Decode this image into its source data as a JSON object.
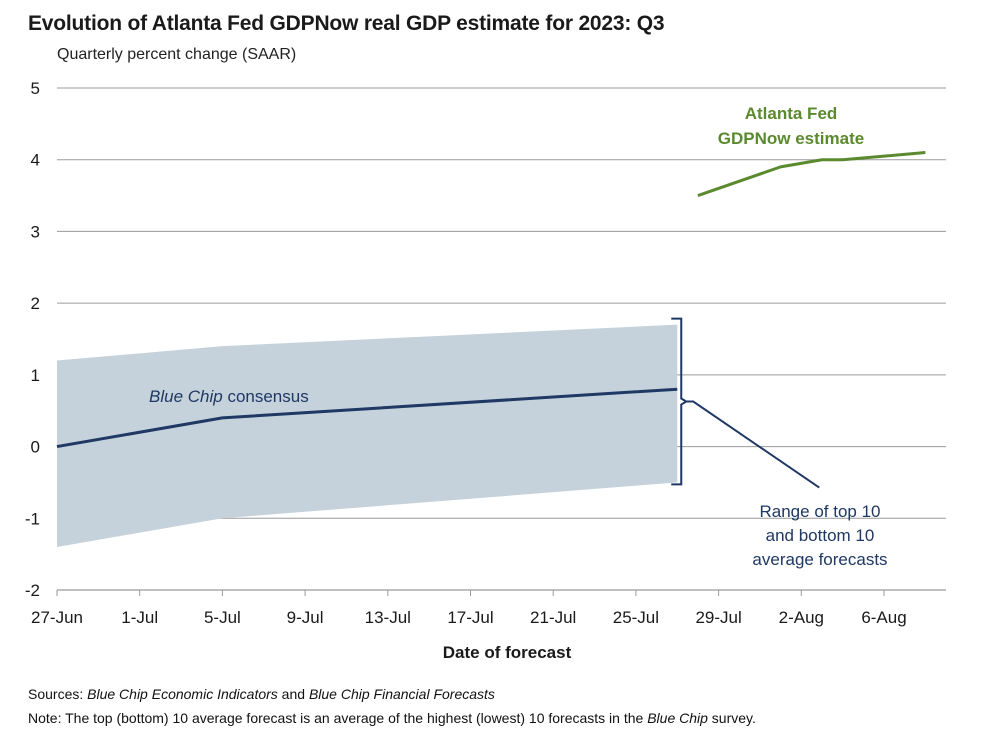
{
  "title": "Evolution of Atlanta Fed GDPNow real GDP estimate for 2023: Q3",
  "subtitle": "Quarterly percent change (SAAR)",
  "colors": {
    "band": "#c5d2dc",
    "consensus": "#1f3864",
    "gdpnow": "#5b8a2e",
    "grid": "#9a9a9a",
    "annotation": "#1f3864"
  },
  "chart_data": {
    "type": "line",
    "xlabel": "Date of forecast",
    "x_ticks": [
      "27-Jun",
      "1-Jul",
      "5-Jul",
      "9-Jul",
      "13-Jul",
      "17-Jul",
      "21-Jul",
      "25-Jul",
      "29-Jul",
      "2-Aug",
      "6-Aug"
    ],
    "y_ticks": [
      "5",
      "4",
      "3",
      "2",
      "1",
      "0",
      "-1",
      "-2"
    ],
    "ylim": [
      -2,
      5
    ],
    "xlim": [
      "2023-06-27",
      "2023-08-10"
    ],
    "grid": "horizontal",
    "series": [
      {
        "name": "Blue Chip consensus",
        "kind": "line",
        "points": [
          {
            "x": "2023-06-27",
            "y": 0.0
          },
          {
            "x": "2023-07-05",
            "y": 0.4
          },
          {
            "x": "2023-07-27",
            "y": 0.8
          }
        ]
      },
      {
        "name": "Range of top 10 and bottom 10 average forecasts",
        "kind": "band",
        "upper": [
          {
            "x": "2023-06-27",
            "y": 1.2
          },
          {
            "x": "2023-07-05",
            "y": 1.4
          },
          {
            "x": "2023-07-27",
            "y": 1.7
          }
        ],
        "lower": [
          {
            "x": "2023-06-27",
            "y": -1.4
          },
          {
            "x": "2023-07-05",
            "y": -1.0
          },
          {
            "x": "2023-07-27",
            "y": -0.5
          }
        ]
      },
      {
        "name": "Atlanta Fed GDPNow estimate",
        "kind": "line",
        "points": [
          {
            "x": "2023-07-28",
            "y": 3.5
          },
          {
            "x": "2023-08-01",
            "y": 3.9
          },
          {
            "x": "2023-08-03",
            "y": 4.0
          },
          {
            "x": "2023-08-04",
            "y": 4.0
          },
          {
            "x": "2023-08-08",
            "y": 4.1
          }
        ]
      }
    ],
    "annotations": {
      "gdpnow_line1": "Atlanta Fed",
      "gdpnow_line2": "GDPNow estimate",
      "consensus_italic": "Blue Chip",
      "consensus_rest": " consensus",
      "range_line1": "Range of top 10",
      "range_line2": "and bottom 10",
      "range_line3": "average forecasts"
    }
  },
  "notes": {
    "sources_label": "Sources:",
    "sources_text_1": "Blue Chip Economic Indicators",
    "sources_and": " and ",
    "sources_text_2": "Blue Chip Financial Forecasts",
    "note_label": "Note:",
    "note_text_1": " The top (bottom) 10 average forecast is an average of the highest (lowest) 10 forecasts in the ",
    "note_italic": "Blue Chip",
    "note_text_2": " survey."
  }
}
